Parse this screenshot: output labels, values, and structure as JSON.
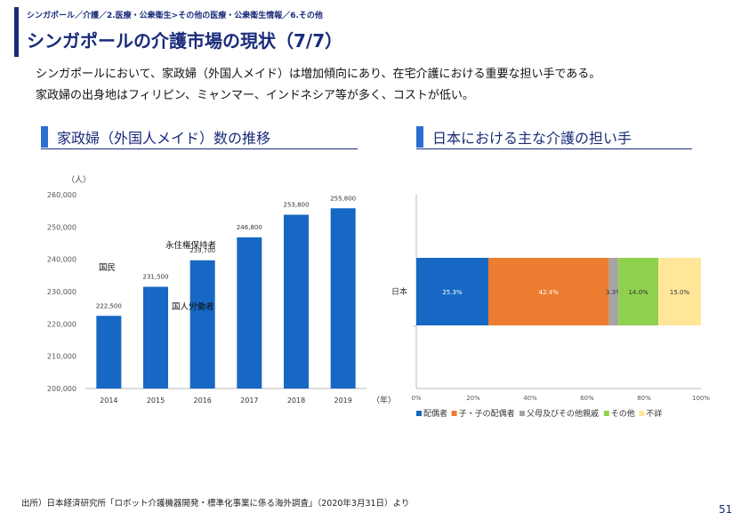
{
  "header": {
    "breadcrumb": "シンガポール／介護／2.医療・公衆衛生>その他の医療・公衆衛生情報／6.その他",
    "title": "シンガポールの介護市場の現状（7/7）"
  },
  "summary": {
    "line1": "シンガポールにおいて、家政婦（外国人メイド）は増加傾向にあり、在宅介護における重要な担い手である。",
    "line2": "家政婦の出身地はフィリピン、ミャンマー、インドネシア等が多く、コストが低い。"
  },
  "left_section": {
    "title": "家政婦（外国人メイド）数の推移"
  },
  "right_section": {
    "title": "日本における主な介護の担い手"
  },
  "chart_data": [
    {
      "type": "bar",
      "title": "家政婦（外国人メイド）数の推移",
      "ylabel": "（人）",
      "xlabel": "（年）",
      "categories": [
        "2014",
        "2015",
        "2016",
        "2017",
        "2018",
        "2019"
      ],
      "values": [
        222500,
        231500,
        239700,
        246800,
        253800,
        255800
      ],
      "data_labels": [
        "222,500",
        "231,500",
        "239,700",
        "246,800",
        "253,800",
        "255,800"
      ],
      "ylim": [
        200000,
        260000
      ],
      "yticks": [
        200000,
        210000,
        220000,
        230000,
        240000,
        250000,
        260000
      ],
      "ytick_labels": [
        "200,000",
        "210,000",
        "220,000",
        "230,000",
        "240,000",
        "250,000",
        "260,000"
      ],
      "annotations": [
        "永住権保持者",
        "国民",
        "国人労働者"
      ],
      "color": "#1668c4"
    },
    {
      "type": "bar",
      "orientation": "horizontal-stacked",
      "title": "日本における主な介護の担い手",
      "categories": [
        "日本"
      ],
      "series": [
        {
          "name": "配偶者",
          "values": [
            25.3
          ],
          "label": "25.3%",
          "color": "#1668c4"
        },
        {
          "name": "子・子の配偶者",
          "values": [
            42.4
          ],
          "label": "42.4%",
          "color": "#ed7d31"
        },
        {
          "name": "父母及びその他親戚",
          "values": [
            3.3
          ],
          "label": "3.3%",
          "color": "#a5a5a5"
        },
        {
          "name": "その他",
          "values": [
            14.0
          ],
          "label": "14.0%",
          "color": "#8fd14f"
        },
        {
          "name": "不詳",
          "values": [
            15.0
          ],
          "label": "15.0%",
          "color": "#ffe699"
        }
      ],
      "xlim": [
        0,
        100
      ],
      "xtick_labels": [
        "0%",
        "20%",
        "40%",
        "60%",
        "80%",
        "100%"
      ],
      "legend": "bottom"
    }
  ],
  "footnote": "出所）日本経済研究所「ロボット介護機器開発・標準化事業に係る海外調査」（2020年3月31日）より",
  "page_number": "51"
}
